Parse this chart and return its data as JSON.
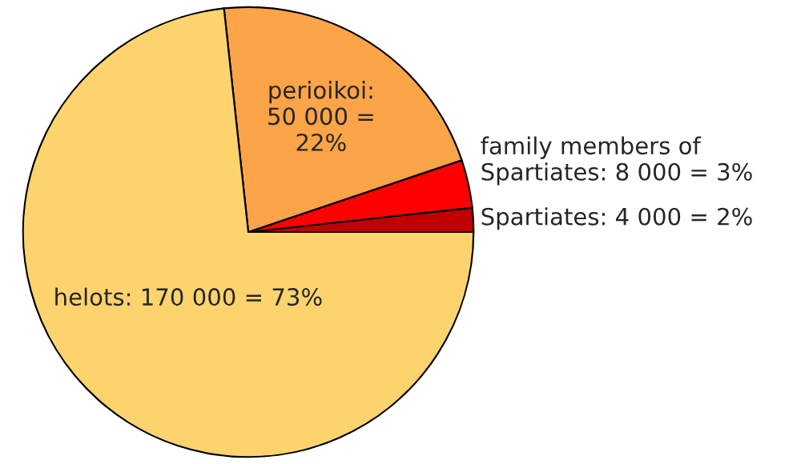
{
  "chart_data": {
    "type": "pie",
    "categories": [
      "Spartiates: 4 000 = 2%",
      "family members of\nSpartiates: 8 000 = 3%",
      "perioikoi:\n50 000 =\n22%",
      "helots: 170 000 = 73%"
    ],
    "values": [
      4000,
      8000,
      50000,
      170000
    ],
    "colors": [
      "#c00000",
      "#ff0000",
      "#fca448",
      "#fdd36e"
    ],
    "legend": false
  }
}
